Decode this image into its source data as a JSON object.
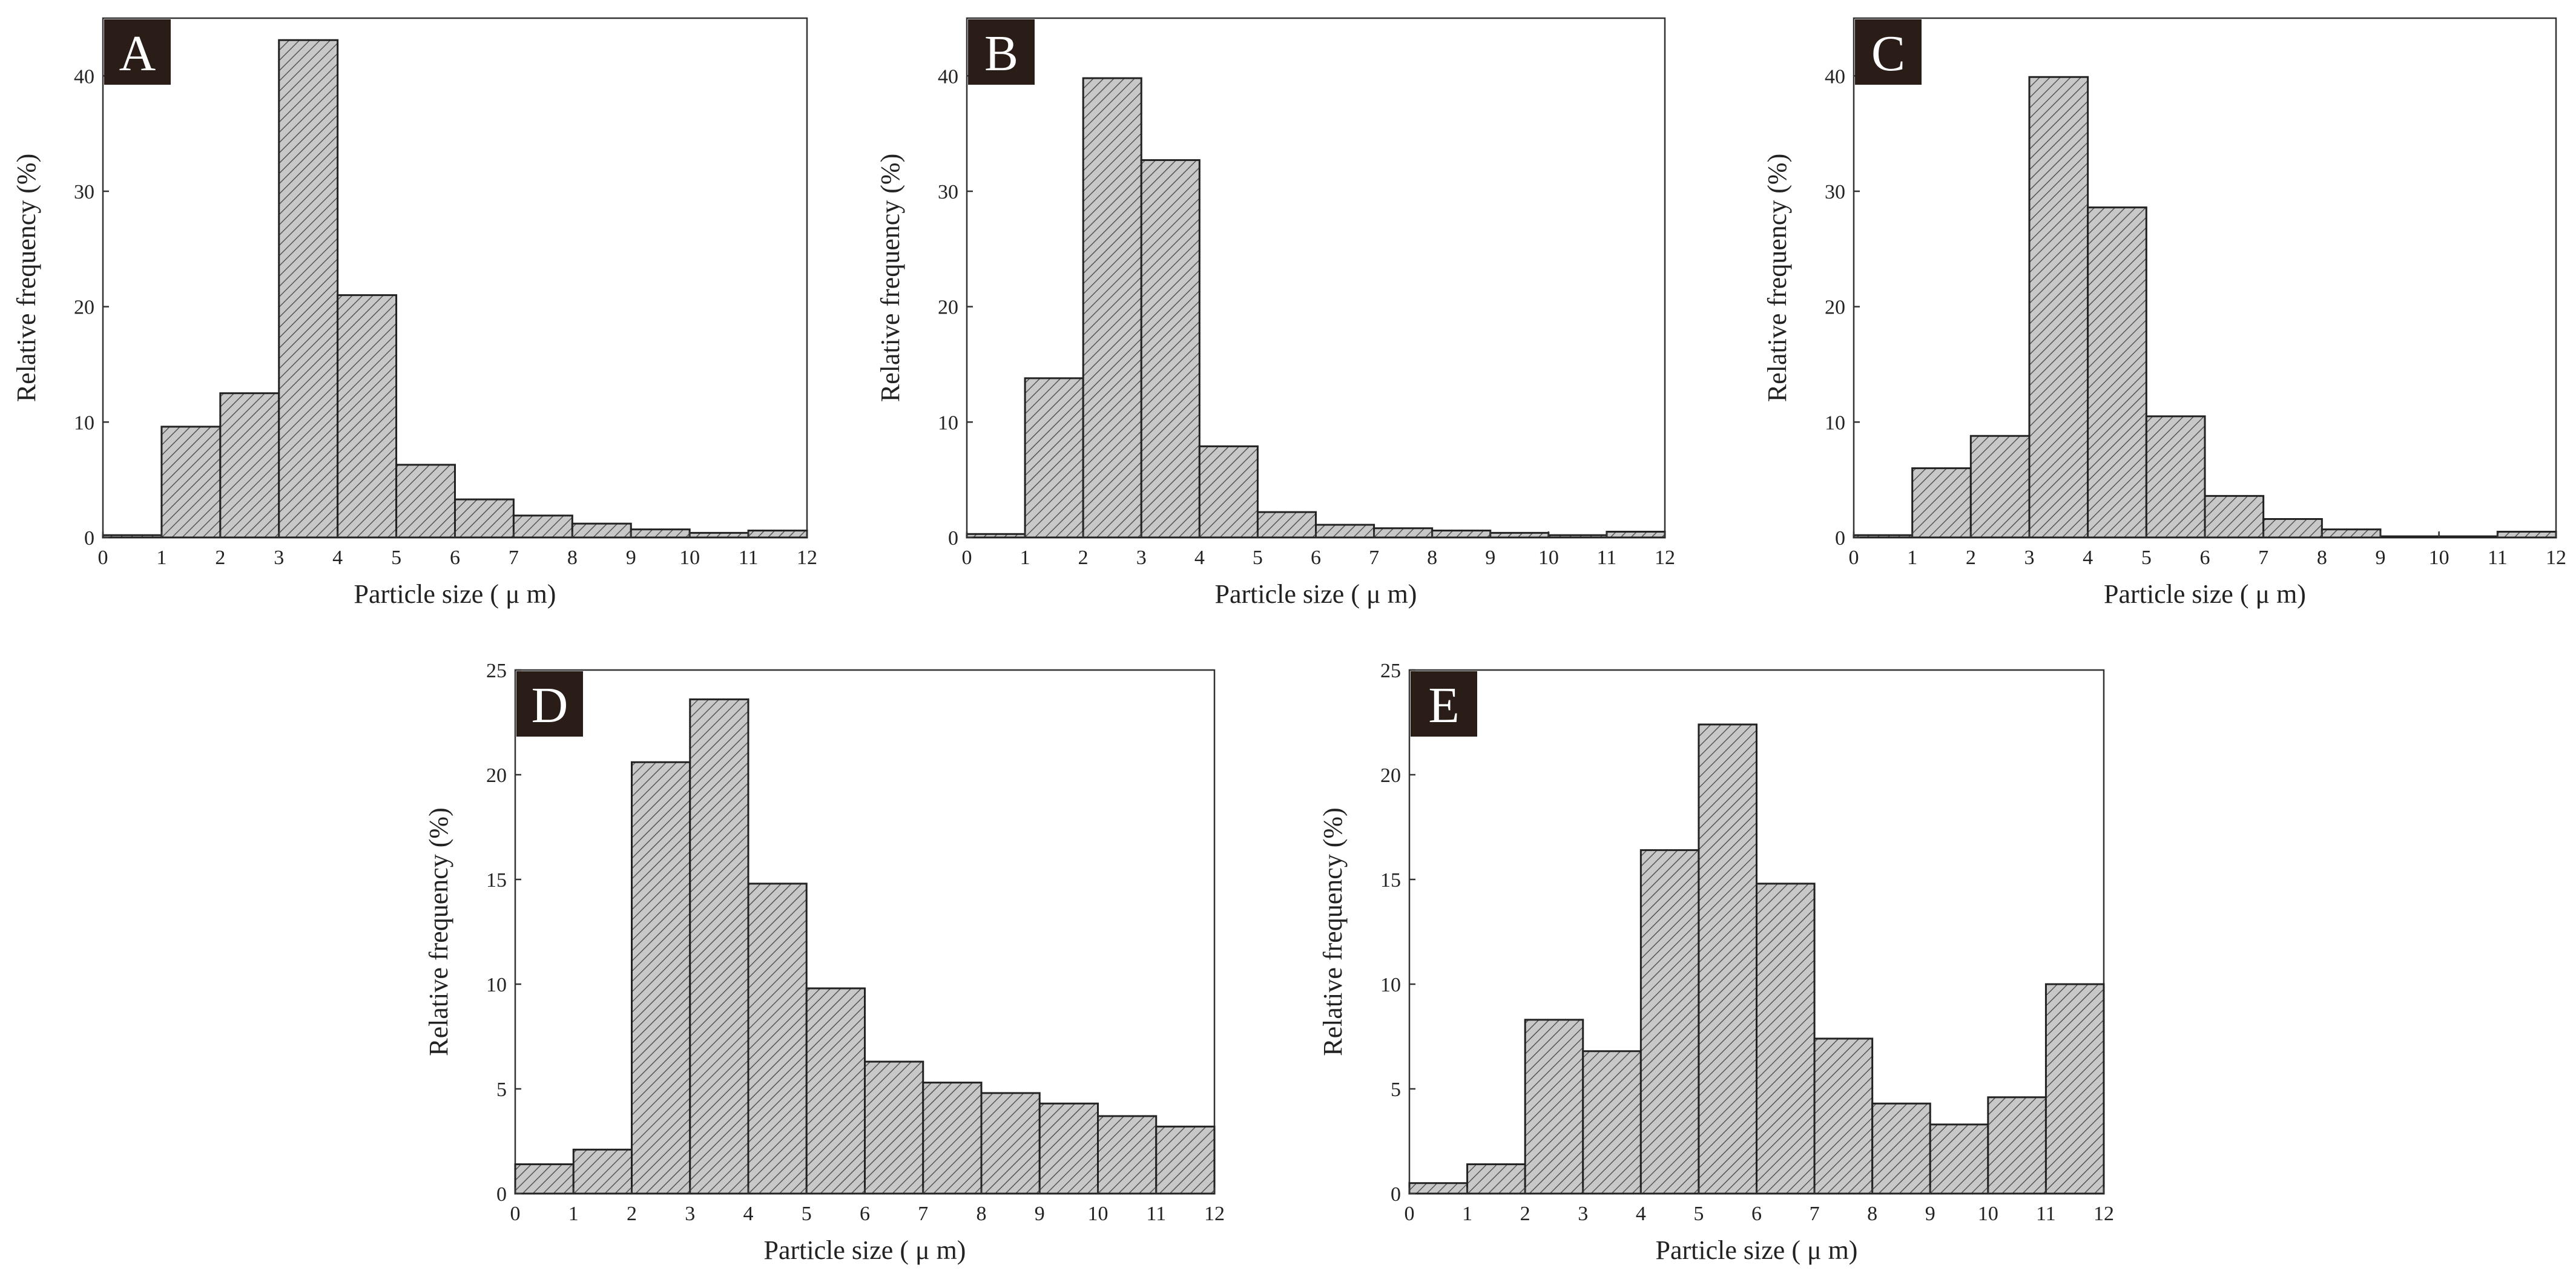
{
  "style": {
    "bar_fill": "#c8c8c8",
    "hatch_color": "#555555",
    "badge_bg": "#2a1d18",
    "axis_color": "#333333"
  },
  "chart_data": [
    {
      "panel": "A",
      "type": "bar",
      "xlabel": "Particle size ( μ m)",
      "ylabel": "Relative frequency (%)",
      "xlim": [
        0,
        12
      ],
      "ylim": [
        0,
        45
      ],
      "x_ticks": [
        0,
        1,
        2,
        3,
        4,
        5,
        6,
        7,
        8,
        9,
        10,
        11,
        12
      ],
      "y_ticks": [
        0,
        10,
        20,
        30,
        40
      ],
      "bins": [
        [
          0,
          1
        ],
        [
          1,
          2
        ],
        [
          2,
          3
        ],
        [
          3,
          4
        ],
        [
          4,
          5
        ],
        [
          5,
          6
        ],
        [
          6,
          7
        ],
        [
          7,
          8
        ],
        [
          8,
          9
        ],
        [
          9,
          10
        ],
        [
          10,
          11
        ],
        [
          11,
          12
        ]
      ],
      "values": [
        0.2,
        9.6,
        12.5,
        43.1,
        21.0,
        6.3,
        3.3,
        1.9,
        1.2,
        0.7,
        0.4,
        0.6
      ]
    },
    {
      "panel": "B",
      "type": "bar",
      "xlabel": "Particle size ( μ m)",
      "ylabel": "Relative frequency (%)",
      "xlim": [
        0,
        12
      ],
      "ylim": [
        0,
        45
      ],
      "x_ticks": [
        0,
        1,
        2,
        3,
        4,
        5,
        6,
        7,
        8,
        9,
        10,
        11,
        12
      ],
      "y_ticks": [
        0,
        10,
        20,
        30,
        40
      ],
      "bins": [
        [
          0,
          1
        ],
        [
          1,
          2
        ],
        [
          2,
          3
        ],
        [
          3,
          4
        ],
        [
          4,
          5
        ],
        [
          5,
          6
        ],
        [
          6,
          7
        ],
        [
          7,
          8
        ],
        [
          8,
          9
        ],
        [
          9,
          10
        ],
        [
          10,
          11
        ],
        [
          11,
          12
        ]
      ],
      "values": [
        0.3,
        13.8,
        39.8,
        32.7,
        7.9,
        2.2,
        1.1,
        0.8,
        0.6,
        0.4,
        0.2,
        0.5
      ]
    },
    {
      "panel": "C",
      "type": "bar",
      "xlabel": "Particle size ( μ m)",
      "ylabel": "Relative frequency (%)",
      "xlim": [
        0,
        12
      ],
      "ylim": [
        0,
        45
      ],
      "x_ticks": [
        0,
        1,
        2,
        3,
        4,
        5,
        6,
        7,
        8,
        9,
        10,
        11,
        12
      ],
      "y_ticks": [
        0,
        10,
        20,
        30,
        40
      ],
      "bins": [
        [
          0,
          1
        ],
        [
          1,
          2
        ],
        [
          2,
          3
        ],
        [
          3,
          4
        ],
        [
          4,
          5
        ],
        [
          5,
          6
        ],
        [
          6,
          7
        ],
        [
          7,
          8
        ],
        [
          8,
          9
        ],
        [
          9,
          10
        ],
        [
          10,
          11
        ],
        [
          11,
          12
        ]
      ],
      "values": [
        0.2,
        6.0,
        8.8,
        39.9,
        28.6,
        10.5,
        3.6,
        1.6,
        0.7,
        0.1,
        0.1,
        0.5
      ]
    },
    {
      "panel": "D",
      "type": "bar",
      "xlabel": "Particle size ( μ m)",
      "ylabel": "Relative frequency (%)",
      "xlim": [
        0,
        12
      ],
      "ylim": [
        0,
        25
      ],
      "x_ticks": [
        0,
        1,
        2,
        3,
        4,
        5,
        6,
        7,
        8,
        9,
        10,
        11,
        12
      ],
      "y_ticks": [
        0,
        5,
        10,
        15,
        20,
        25
      ],
      "bins": [
        [
          0,
          1
        ],
        [
          1,
          2
        ],
        [
          2,
          3
        ],
        [
          3,
          4
        ],
        [
          4,
          5
        ],
        [
          5,
          6
        ],
        [
          6,
          7
        ],
        [
          7,
          8
        ],
        [
          8,
          9
        ],
        [
          9,
          10
        ],
        [
          10,
          11
        ],
        [
          11,
          12
        ]
      ],
      "values": [
        1.4,
        2.1,
        20.6,
        23.6,
        14.8,
        9.8,
        6.3,
        5.3,
        4.8,
        4.3,
        3.7,
        3.2
      ]
    },
    {
      "panel": "E",
      "type": "bar",
      "xlabel": "Particle size ( μ m)",
      "ylabel": "Relative frequency (%)",
      "xlim": [
        0,
        12
      ],
      "ylim": [
        0,
        25
      ],
      "x_ticks": [
        0,
        1,
        2,
        3,
        4,
        5,
        6,
        7,
        8,
        9,
        10,
        11,
        12
      ],
      "y_ticks": [
        0,
        5,
        10,
        15,
        20,
        25
      ],
      "bins": [
        [
          0,
          1
        ],
        [
          1,
          2
        ],
        [
          2,
          3
        ],
        [
          3,
          4
        ],
        [
          4,
          5
        ],
        [
          5,
          6
        ],
        [
          6,
          7
        ],
        [
          7,
          8
        ],
        [
          8,
          9
        ],
        [
          9,
          10
        ],
        [
          10,
          11
        ],
        [
          11,
          12
        ]
      ],
      "values": [
        0.5,
        1.4,
        8.3,
        6.8,
        16.4,
        22.4,
        14.8,
        7.4,
        4.3,
        3.3,
        4.6,
        10.0
      ]
    }
  ]
}
